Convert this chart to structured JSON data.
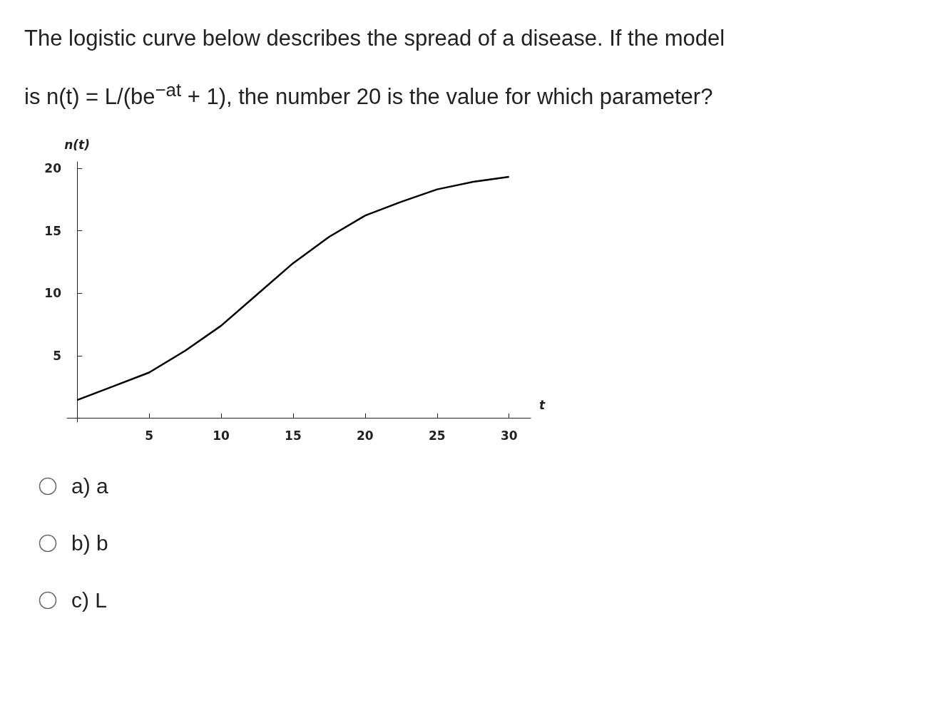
{
  "chart_data": {
    "type": "line",
    "title": "The logistic curve below describes the spread of a disease. If the model is n(t) = L/(be$^{−at}$ + 1), the number 20 is the value for which parameter?",
    "xlabel": "t",
    "ylabel": "n(t)",
    "x": [
      0,
      2.5,
      5,
      7.5,
      10,
      12.5,
      15,
      17.5,
      20,
      22.5,
      25,
      27.5,
      30
    ],
    "series": [
      {
        "color": "#000000",
        "values": [
          1.46,
          2.56,
          3.66,
          5.4,
          7.4,
          9.9,
          12.4,
          14.5,
          16.2,
          17.3,
          18.3,
          18.9,
          19.3
        ]
      }
    ],
    "xlim": [
      -0.7,
      31.5
    ],
    "ylim": [
      -0.3,
      20.5
    ],
    "xticks": [
      5,
      10,
      15,
      20,
      25,
      30
    ],
    "yticks": [
      5,
      10,
      15,
      20
    ],
    "grid": false,
    "marker": "none",
    "line_style": "solid",
    "annotations": [
      "a) a",
      "b) b",
      "c) L"
    ]
  }
}
